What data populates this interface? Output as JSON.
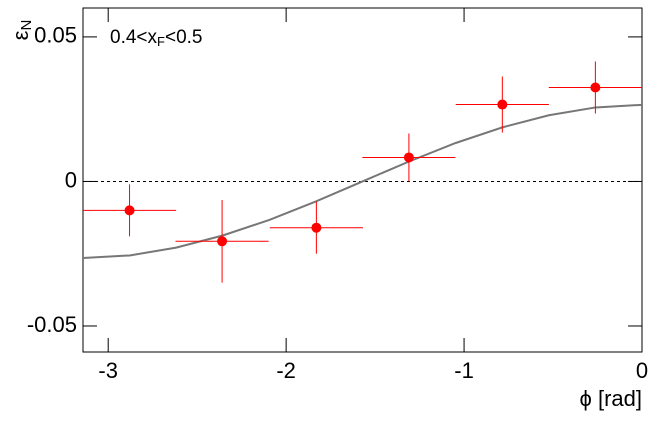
{
  "chart_data": {
    "type": "scatter",
    "ylabel": {
      "main": "ε",
      "sub": "N"
    },
    "xlabel": "ϕ [rad]",
    "annotation": {
      "before": "0.4<x",
      "sub": "F",
      "after": "<0.5"
    },
    "xlim": [
      -3.1416,
      0
    ],
    "ylim": [
      -0.059,
      0.06
    ],
    "xticks": [
      -3,
      -2,
      -1,
      0
    ],
    "yticks": [
      -0.05,
      0,
      0.05
    ],
    "reference_line": 0,
    "points": {
      "color": "#ff0000",
      "x": [
        -2.88,
        -2.36,
        -1.83,
        -1.31,
        -0.785,
        -0.262
      ],
      "values": [
        -0.01,
        -0.0207,
        -0.016,
        0.0083,
        0.0266,
        0.0325
      ],
      "errors": [
        0.009,
        0.0143,
        0.009,
        0.0083,
        0.0097,
        0.009
      ],
      "x_errors": [
        0.2618,
        0.2618,
        0.2618,
        0.2618,
        0.2618,
        0.2618
      ]
    },
    "curve": {
      "color": "#777777",
      "x": [
        -3.1416,
        -2.8798,
        -2.618,
        -2.3562,
        -2.0944,
        -1.8326,
        -1.5708,
        -1.309,
        -1.0472,
        -0.7854,
        -0.5236,
        -0.2618,
        0
      ],
      "values": [
        -0.0265,
        -0.0256,
        -0.0229,
        -0.0187,
        -0.0133,
        -0.0069,
        0,
        0.0069,
        0.0133,
        0.0187,
        0.0229,
        0.0256,
        0.0265
      ]
    }
  }
}
